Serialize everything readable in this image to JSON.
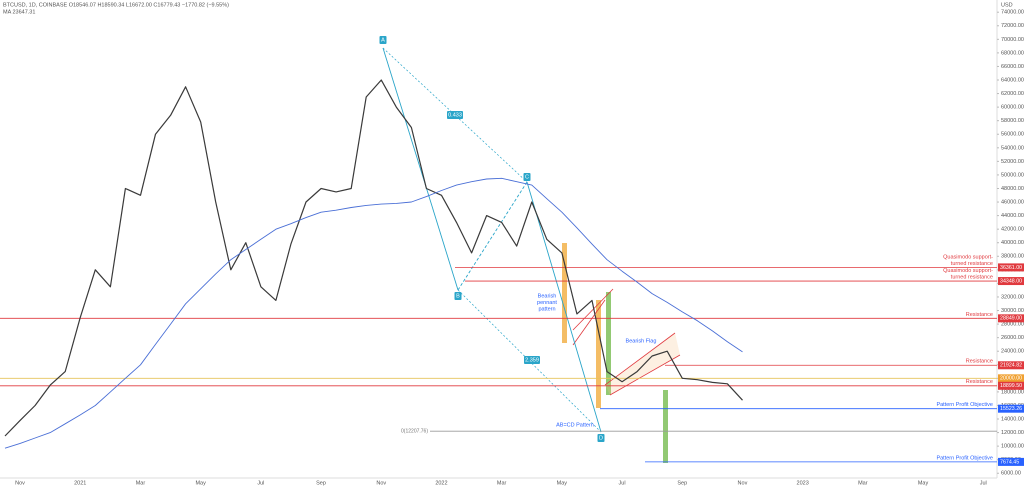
{
  "header": {
    "symbol_line": "BTCUSD, 1D, COINBASE  O18546.07 H18590.34 L16672.00 C16779.43 −1770.82 (−9.55%)",
    "ma_line": "MA 23647.31"
  },
  "chart_data": {
    "type": "line",
    "unit": "USD",
    "categories": [
      null,
      "Nov",
      null,
      null,
      null,
      "2021",
      null,
      null,
      null,
      "Mar",
      null,
      null,
      null,
      "May",
      null,
      null,
      null,
      "Jul",
      null,
      null,
      null,
      "Sep",
      null,
      null,
      null,
      "Nov",
      null,
      null,
      null,
      "2022",
      null,
      null,
      null,
      "Mar",
      null,
      null,
      null,
      "May",
      null,
      null,
      null,
      "Jul",
      null,
      null,
      null,
      "Sep",
      null,
      null,
      null,
      "Nov",
      null,
      null,
      null,
      "2023",
      null,
      null,
      null,
      "Mar",
      null,
      null,
      null,
      "May",
      null,
      null,
      null,
      "Jul"
    ],
    "series": [
      {
        "color": "#3a3a3a",
        "values": [
          11500,
          13800,
          16000,
          19000,
          21000,
          29000,
          36000,
          33500,
          48000,
          47000,
          56000,
          58800,
          63000,
          57800,
          46000,
          36000,
          40000,
          33500,
          31500,
          39800,
          46000,
          48000,
          47500,
          48000,
          61500,
          64000,
          60000,
          57000,
          48000,
          47000,
          43000,
          38500,
          44000,
          43000,
          39500,
          46000,
          40500,
          38500,
          29500,
          31500,
          21000,
          19500,
          21000,
          23300,
          24000,
          20000,
          19800,
          19400,
          19200,
          16779,
          null,
          null,
          null,
          null,
          null,
          null,
          null,
          null,
          null,
          null,
          null,
          null,
          null,
          null,
          null,
          null
        ]
      },
      {
        "color": "#4a6fd6",
        "values": [
          9700,
          10400,
          11200,
          12000,
          13300,
          14600,
          16000,
          18000,
          20000,
          22000,
          25000,
          28000,
          31000,
          33200,
          35400,
          37500,
          39000,
          40500,
          42000,
          42800,
          43700,
          44500,
          44800,
          45200,
          45500,
          45700,
          45800,
          46000,
          46800,
          47700,
          48500,
          49000,
          49400,
          49500,
          49000,
          48500,
          46500,
          44500,
          42200,
          39800,
          37500,
          35800,
          34200,
          32500,
          31200,
          29800,
          28500,
          27000,
          25400,
          23900,
          null,
          null,
          null,
          null,
          null,
          null,
          null,
          null,
          null,
          null,
          null,
          null,
          null,
          null,
          null,
          null
        ]
      }
    ],
    "ylim": [
      5300,
      75800
    ],
    "yticks": [
      {
        "value": 6000,
        "label": "6000.00"
      },
      {
        "value": 8000,
        "label": "8000.00"
      },
      {
        "value": 10000,
        "label": "10000.00"
      },
      {
        "value": 12000,
        "label": "12000.00"
      },
      {
        "value": 14000,
        "label": "14000.00"
      },
      {
        "value": 16000,
        "label": "16000.00"
      },
      {
        "value": 18000,
        "label": "18000.00"
      },
      {
        "value": 20000,
        "label": "20000.00"
      },
      {
        "value": 22000,
        "label": "22000.00"
      },
      {
        "value": 24000,
        "label": "24000.00"
      },
      {
        "value": 26000,
        "label": "26000.00"
      },
      {
        "value": 28000,
        "label": "28000.00"
      },
      {
        "value": 30000,
        "label": "30000.00"
      },
      {
        "value": 32000,
        "label": "32000.00"
      },
      {
        "value": 34000,
        "label": "34000.00"
      },
      {
        "value": 36000,
        "label": "36000.00"
      },
      {
        "value": 38000,
        "label": "38000.00"
      },
      {
        "value": 40000,
        "label": "40000.00"
      },
      {
        "value": 42000,
        "label": "42000.00"
      },
      {
        "value": 44000,
        "label": "44000.00"
      },
      {
        "value": 46000,
        "label": "46000.00"
      },
      {
        "value": 48000,
        "label": "48000.00"
      },
      {
        "value": 50000,
        "label": "50000.00"
      },
      {
        "value": 52000,
        "label": "52000.00"
      },
      {
        "value": 54000,
        "label": "54000.00"
      },
      {
        "value": 56000,
        "label": "56000.00"
      },
      {
        "value": 58000,
        "label": "58000.00"
      },
      {
        "value": 60000,
        "label": "60000.00"
      },
      {
        "value": 62000,
        "label": "62000.00"
      },
      {
        "value": 64000,
        "label": "64000.00"
      },
      {
        "value": 66000,
        "label": "66000.00"
      },
      {
        "value": 68000,
        "label": "68000.00"
      },
      {
        "value": 70000,
        "label": "70000.00"
      },
      {
        "value": 72000,
        "label": "72000.00"
      },
      {
        "value": 74000,
        "label": "74000.00"
      }
    ],
    "levels": [
      {
        "value": 36361,
        "label": "36361.00",
        "text": [
          "Quasimodo support-",
          "turned resistance"
        ],
        "color": "#e0393e"
      },
      {
        "value": 34348,
        "label": "34348.00",
        "text": [
          "Quasimodo support-",
          "turned resistance"
        ],
        "color": "#e0393e"
      },
      {
        "value": 28849,
        "label": "28849.00",
        "text": [
          "Resistance"
        ],
        "color": "#e0393e"
      },
      {
        "value": 21924.82,
        "label": "21924.82",
        "text": [
          "Resistance"
        ],
        "color": "#e0393e"
      },
      {
        "value": 20000,
        "label": "20000.00",
        "text": [],
        "color": "#f0a030"
      },
      {
        "value": 18899.5,
        "label": "18899.50",
        "text": [
          "Resistance"
        ],
        "color": "#e0393e"
      },
      {
        "value": 15523.26,
        "label": "15523.26",
        "text": [
          "Pattern Profit Objective"
        ],
        "color": "#2962ff"
      },
      {
        "value": 7674.45,
        "label": "7674.45",
        "text": [
          "Pattern Profit Objective"
        ],
        "color": "#2962ff"
      },
      {
        "value": 12207.76,
        "label": "0(12207.76)",
        "text": [],
        "color": "#9a9a9a"
      }
    ],
    "annotations": {
      "points": [
        "A",
        "B",
        "C",
        "D"
      ],
      "ratios": [
        "0.433",
        "2.359"
      ],
      "pattern": "AB=CD Pattern",
      "pennant": [
        "Bearish",
        "pennant",
        "pattern"
      ],
      "flag": "Bearish Flag"
    }
  }
}
